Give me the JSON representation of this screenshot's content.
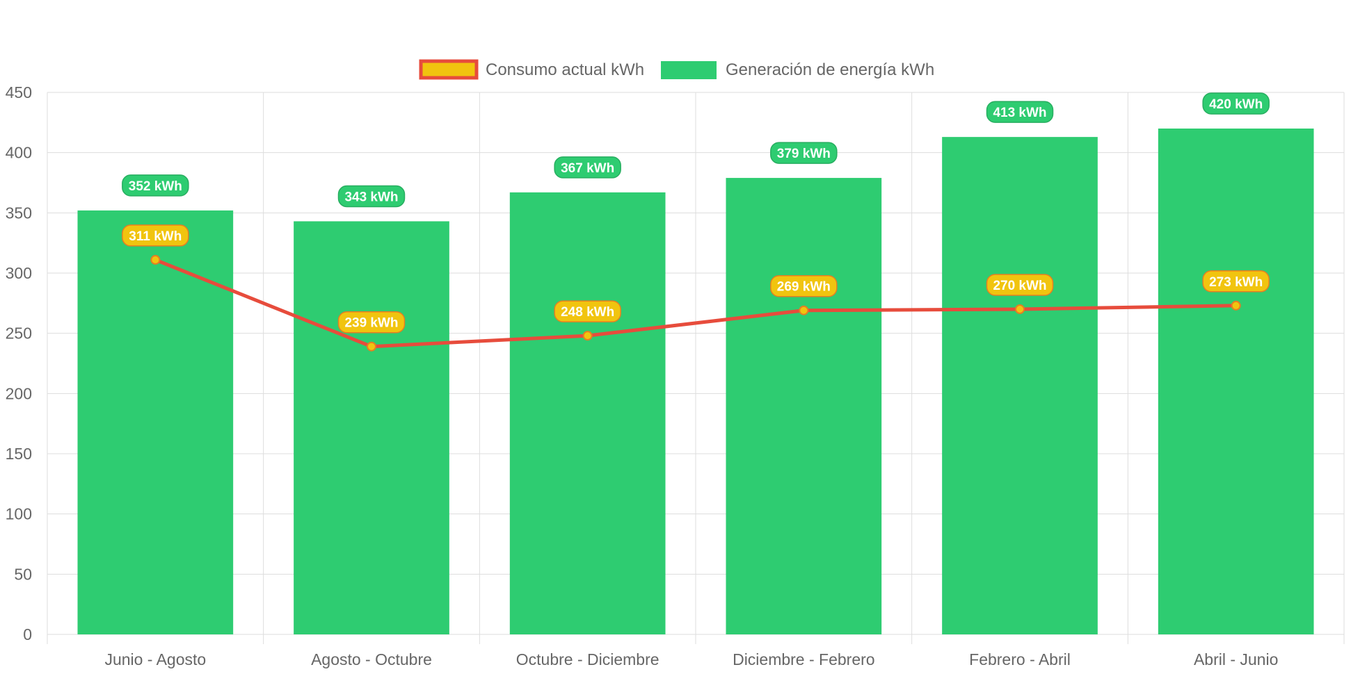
{
  "chart_data": {
    "type": "bar",
    "categories": [
      "Junio - Agosto",
      "Agosto - Octubre",
      "Octubre - Diciembre",
      "Diciembre - Febrero",
      "Febrero - Abril",
      "Abril - Junio"
    ],
    "series": [
      {
        "name": "Consumo actual kWh",
        "type": "line",
        "values": [
          311,
          239,
          248,
          269,
          270,
          273
        ],
        "labels": [
          "311 kWh",
          "239 kWh",
          "248 kWh",
          "269 kWh",
          "270 kWh",
          "273 kWh"
        ],
        "line_color": "#e74c3c",
        "point_color": "#f1c40f"
      },
      {
        "name": "Generación de energía kWh",
        "type": "bar",
        "values": [
          352,
          343,
          367,
          379,
          413,
          420
        ],
        "labels": [
          "352 kWh",
          "343 kWh",
          "367 kWh",
          "379 kWh",
          "413 kWh",
          "420 kWh"
        ],
        "color": "#2ecc71"
      }
    ],
    "yticks": [
      "0",
      "50",
      "100",
      "150",
      "200",
      "250",
      "300",
      "350",
      "400",
      "450"
    ],
    "ylim": [
      0,
      450
    ],
    "grid": true,
    "legend": "top-center",
    "title": "",
    "xlabel": "",
    "ylabel": ""
  },
  "colors": {
    "grid": "#dddddd",
    "tick_text": "#666666",
    "label_text": "#ffffff",
    "bar_label_border": "#27ae60",
    "line_label_border": "#e67e22"
  }
}
